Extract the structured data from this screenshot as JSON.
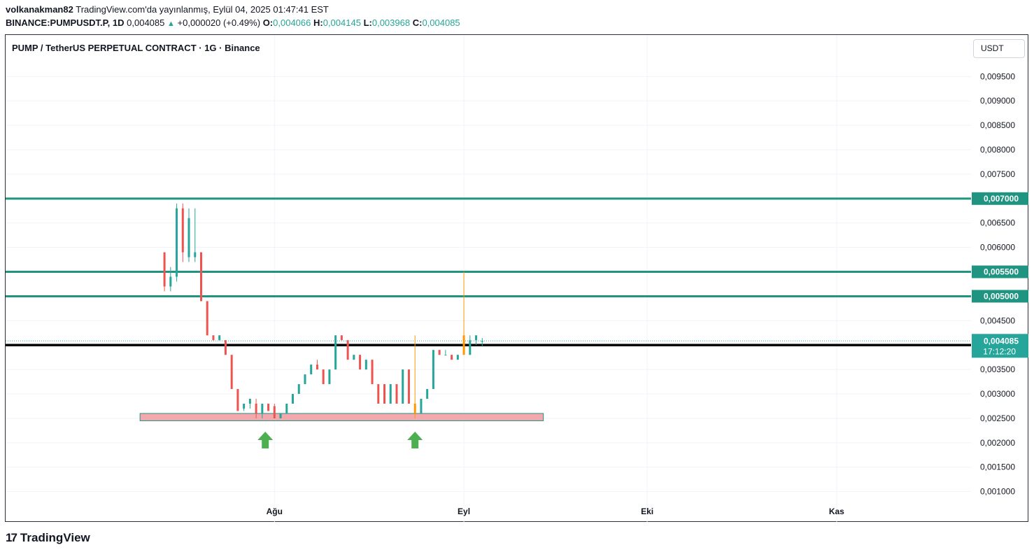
{
  "header": {
    "author": "volkanakman82",
    "published_text": "TradingView.com'da yayınlanmış, Eylül 04, 2025 01:47:41 EST",
    "symbol_line": "BINANCE:PUMPUSDT.P, 1D",
    "last_price": "0,004085",
    "change_symbol": "▲",
    "change_text": "+0,000020 (+0.49%)",
    "o_label": "O:",
    "o_value": "0,004066",
    "h_label": "H:",
    "h_value": "0,004145",
    "l_label": "L:",
    "l_value": "0,003968",
    "c_label": "C:",
    "c_value": "0,004085"
  },
  "chart_title": "PUMP / TetherUS PERPETUAL CONTRACT · 1G · Binance",
  "currency_button": "USDT",
  "branding": {
    "logo_mark": "17",
    "logo_text": "TradingView"
  },
  "colors": {
    "up": "#26a69a",
    "down": "#ef5350",
    "level_line": "#1f9480",
    "orange": "#ff9800",
    "zone_fill": "#f4a7ad",
    "arrow": "#4caf50",
    "black_line": "#000000"
  },
  "chart_data": {
    "type": "candlestick",
    "title": "PUMP / TetherUS PERPETUAL CONTRACT · 1G · Binance",
    "xlabel": "",
    "ylabel": "",
    "ylim": [
      0.00078,
      0.01035
    ],
    "yticks": [
      0.0095,
      0.009,
      0.0085,
      0.008,
      0.0075,
      0.007,
      0.0065,
      0.006,
      0.0055,
      0.005,
      0.0045,
      0.004,
      0.0035,
      0.003,
      0.0025,
      0.002,
      0.0015,
      0.001
    ],
    "ytick_labels": [
      "0,009500",
      "0,009000",
      "0,008500",
      "0,008000",
      "0,007500",
      "0,007000",
      "0,006500",
      "0,006000",
      "0,005500",
      "0,005000",
      "0,004500",
      "0,004000",
      "0,003500",
      "0,003000",
      "0,002500",
      "0,002000",
      "0,001500",
      "0,001000"
    ],
    "x_month_labels": [
      {
        "label": "Ağu",
        "day": 19
      },
      {
        "label": "Eyl",
        "day": 50
      },
      {
        "label": "Eki",
        "day": 80
      },
      {
        "label": "Kas",
        "day": 111
      }
    ],
    "x_range_days": [
      -25,
      133
    ],
    "candles": [
      {
        "day": 1,
        "o": 0.0059,
        "h": 0.0059,
        "l": 0.0051,
        "c": 0.0052
      },
      {
        "day": 2,
        "o": 0.0052,
        "h": 0.0056,
        "l": 0.0051,
        "c": 0.0054
      },
      {
        "day": 3,
        "o": 0.0054,
        "h": 0.0069,
        "l": 0.0053,
        "c": 0.0068
      },
      {
        "day": 4,
        "o": 0.0068,
        "h": 0.0069,
        "l": 0.0057,
        "c": 0.0059
      },
      {
        "day": 5,
        "o": 0.0058,
        "h": 0.0068,
        "l": 0.0057,
        "c": 0.0066
      },
      {
        "day": 6,
        "o": 0.0058,
        "h": 0.0068,
        "l": 0.0057,
        "c": 0.0059
      },
      {
        "day": 7,
        "o": 0.0059,
        "h": 0.0059,
        "l": 0.0049,
        "c": 0.0049
      },
      {
        "day": 8,
        "o": 0.0049,
        "h": 0.0049,
        "l": 0.0042,
        "c": 0.0042
      },
      {
        "day": 9,
        "o": 0.0042,
        "h": 0.0042,
        "l": 0.0041,
        "c": 0.0041
      },
      {
        "day": 10,
        "o": 0.0041,
        "h": 0.0042,
        "l": 0.0041,
        "c": 0.0042
      },
      {
        "day": 11,
        "o": 0.0041,
        "h": 0.0041,
        "l": 0.0038,
        "c": 0.0038
      },
      {
        "day": 12,
        "o": 0.0038,
        "h": 0.0038,
        "l": 0.0031,
        "c": 0.0031
      },
      {
        "day": 13,
        "o": 0.0031,
        "h": 0.0031,
        "l": 0.00265,
        "c": 0.00265
      },
      {
        "day": 14,
        "o": 0.0027,
        "h": 0.0028,
        "l": 0.00265,
        "c": 0.0028
      },
      {
        "day": 15,
        "o": 0.0028,
        "h": 0.0029,
        "l": 0.0027,
        "c": 0.0029
      },
      {
        "day": 16,
        "o": 0.0028,
        "h": 0.0029,
        "l": 0.0025,
        "c": 0.0026
      },
      {
        "day": 17,
        "o": 0.0026,
        "h": 0.0028,
        "l": 0.0025,
        "c": 0.0028
      },
      {
        "day": 18,
        "o": 0.0028,
        "h": 0.0028,
        "l": 0.00265,
        "c": 0.00265
      },
      {
        "day": 19,
        "o": 0.00275,
        "h": 0.0028,
        "l": 0.0025,
        "c": 0.0025
      },
      {
        "day": 20,
        "o": 0.0025,
        "h": 0.0026,
        "l": 0.0025,
        "c": 0.0026
      },
      {
        "day": 21,
        "o": 0.0026,
        "h": 0.0028,
        "l": 0.0026,
        "c": 0.0028
      },
      {
        "day": 22,
        "o": 0.0028,
        "h": 0.003,
        "l": 0.0028,
        "c": 0.003
      },
      {
        "day": 23,
        "o": 0.003,
        "h": 0.0032,
        "l": 0.003,
        "c": 0.0032
      },
      {
        "day": 24,
        "o": 0.0032,
        "h": 0.0034,
        "l": 0.0032,
        "c": 0.0034
      },
      {
        "day": 25,
        "o": 0.0034,
        "h": 0.0036,
        "l": 0.0034,
        "c": 0.0036
      },
      {
        "day": 26,
        "o": 0.0036,
        "h": 0.0037,
        "l": 0.0035,
        "c": 0.0035
      },
      {
        "day": 27,
        "o": 0.0035,
        "h": 0.0035,
        "l": 0.0032,
        "c": 0.0032
      },
      {
        "day": 28,
        "o": 0.0032,
        "h": 0.0035,
        "l": 0.0032,
        "c": 0.0035
      },
      {
        "day": 29,
        "o": 0.0035,
        "h": 0.0042,
        "l": 0.0035,
        "c": 0.0042
      },
      {
        "day": 30,
        "o": 0.0042,
        "h": 0.0042,
        "l": 0.0041,
        "c": 0.0041
      },
      {
        "day": 31,
        "o": 0.0041,
        "h": 0.0041,
        "l": 0.0037,
        "c": 0.0037
      },
      {
        "day": 32,
        "o": 0.0037,
        "h": 0.0038,
        "l": 0.0037,
        "c": 0.0038
      },
      {
        "day": 33,
        "o": 0.0038,
        "h": 0.0038,
        "l": 0.0035,
        "c": 0.0035
      },
      {
        "day": 34,
        "o": 0.0035,
        "h": 0.0037,
        "l": 0.0035,
        "c": 0.0037
      },
      {
        "day": 35,
        "o": 0.0037,
        "h": 0.0037,
        "l": 0.0032,
        "c": 0.0032
      },
      {
        "day": 36,
        "o": 0.0032,
        "h": 0.0032,
        "l": 0.0028,
        "c": 0.0028
      },
      {
        "day": 37,
        "o": 0.0032,
        "h": 0.0032,
        "l": 0.0028,
        "c": 0.0028
      },
      {
        "day": 38,
        "o": 0.0028,
        "h": 0.0032,
        "l": 0.0028,
        "c": 0.0032
      },
      {
        "day": 39,
        "o": 0.0032,
        "h": 0.0032,
        "l": 0.0028,
        "c": 0.0028
      },
      {
        "day": 40,
        "o": 0.0028,
        "h": 0.0035,
        "l": 0.0028,
        "c": 0.0035
      },
      {
        "day": 41,
        "o": 0.0035,
        "h": 0.0035,
        "l": 0.0028,
        "c": 0.0028
      },
      {
        "day": 42,
        "o": 0.0028,
        "h": 0.0042,
        "l": 0.0025,
        "c": 0.0026,
        "highlight": "orange"
      },
      {
        "day": 43,
        "o": 0.0026,
        "h": 0.0029,
        "l": 0.0026,
        "c": 0.0029
      },
      {
        "day": 44,
        "o": 0.0029,
        "h": 0.0031,
        "l": 0.0029,
        "c": 0.0031
      },
      {
        "day": 45,
        "o": 0.0031,
        "h": 0.0039,
        "l": 0.0031,
        "c": 0.0039
      },
      {
        "day": 46,
        "o": 0.0039,
        "h": 0.0039,
        "l": 0.0038,
        "c": 0.0038
      },
      {
        "day": 47,
        "o": 0.0038,
        "h": 0.0039,
        "l": 0.0038,
        "c": 0.0038
      },
      {
        "day": 48,
        "o": 0.0038,
        "h": 0.0038,
        "l": 0.0037,
        "c": 0.0037
      },
      {
        "day": 49,
        "o": 0.0037,
        "h": 0.0038,
        "l": 0.0037,
        "c": 0.0038
      },
      {
        "day": 50,
        "o": 0.0038,
        "h": 0.0055,
        "l": 0.0038,
        "c": 0.0042,
        "highlight": "orange"
      },
      {
        "day": 51,
        "o": 0.0038,
        "h": 0.0042,
        "l": 0.0038,
        "c": 0.0041
      },
      {
        "day": 52,
        "o": 0.0041,
        "h": 0.0042,
        "l": 0.004,
        "c": 0.0042
      },
      {
        "day": 53,
        "o": 0.004066,
        "h": 0.004145,
        "l": 0.003968,
        "c": 0.004085
      }
    ],
    "horizontal_levels": [
      {
        "price": 0.007,
        "label": "0,007000",
        "color": "#1f9480"
      },
      {
        "price": 0.0055,
        "label": "0,005500",
        "color": "#1f9480"
      },
      {
        "price": 0.005,
        "label": "0,005000",
        "color": "#1f9480"
      },
      {
        "price": 0.004,
        "label": "0,004000",
        "color": "#000000"
      }
    ],
    "last_price_tag": {
      "price": 0.004085,
      "label": "0,004085",
      "countdown": "17:12:20"
    },
    "support_zone": {
      "price_top": 0.0026,
      "price_bottom": 0.00245,
      "day_from": -3,
      "day_to": 63
    },
    "arrows": [
      {
        "day": 17.5,
        "direction": "up"
      },
      {
        "day": 42,
        "direction": "up"
      }
    ]
  }
}
